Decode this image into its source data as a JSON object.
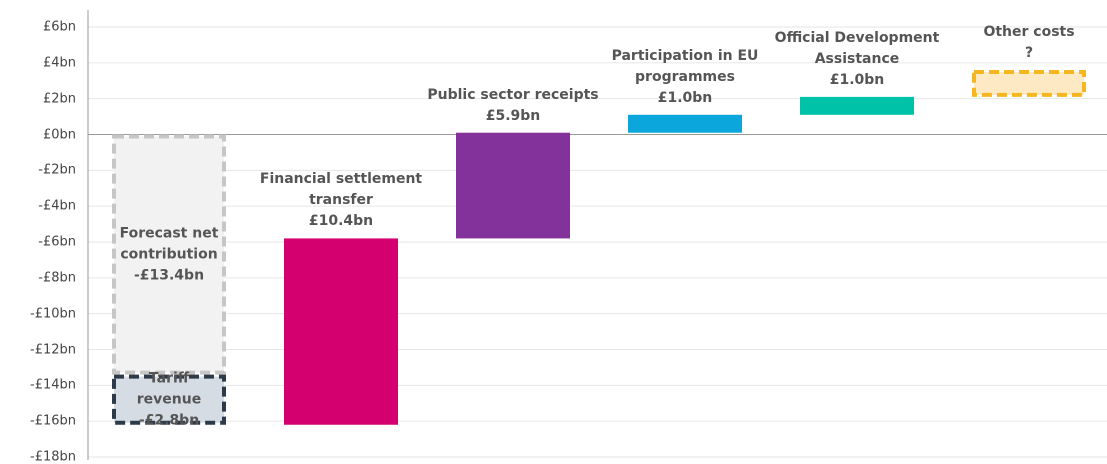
{
  "chart_data": {
    "type": "waterfall",
    "categories": [
      "Forecast net contribution",
      "Tariff revenue",
      "Financial settlement transfer",
      "Public sector receipts",
      "Participation in EU programmes",
      "Official Development Assistance",
      "Other costs"
    ],
    "values": [
      -13.4,
      -2.8,
      10.4,
      5.9,
      1.0,
      1.0,
      1.5
    ],
    "value_labels": [
      "-£13.4bn",
      "-£2.8bn",
      "£10.4bn",
      "£5.9bn",
      "£1.0bn",
      "£1.0bn",
      "?"
    ],
    "colors": [
      "#f2f2f2",
      "#d6dce4",
      "#d4006f",
      "#83329b",
      "#0aa6dc",
      "#00c2a8",
      "#fde9c4"
    ],
    "border_colors": [
      "#c6c6c6",
      "#2d3a4a",
      null,
      null,
      null,
      null,
      "#f5b61f"
    ],
    "ylim": [
      -18,
      6
    ],
    "yticks": [
      {
        "value": -18,
        "label": "-£18bn"
      },
      {
        "value": -16,
        "label": "-£16bn"
      },
      {
        "value": -14,
        "label": "-£14bn"
      },
      {
        "value": -12,
        "label": "-£12bn"
      },
      {
        "value": -10,
        "label": "-£10bn"
      },
      {
        "value": -8,
        "label": "-£8bn"
      },
      {
        "value": -6,
        "label": "-£6bn"
      },
      {
        "value": -4,
        "label": "-£4bn"
      },
      {
        "value": -2,
        "label": "-£2bn"
      },
      {
        "value": 0,
        "label": "£0bn"
      },
      {
        "value": 2,
        "label": "£2bn"
      },
      {
        "value": 4,
        "label": "£4bn"
      },
      {
        "value": 6,
        "label": "£6bn"
      }
    ],
    "grid": true
  }
}
